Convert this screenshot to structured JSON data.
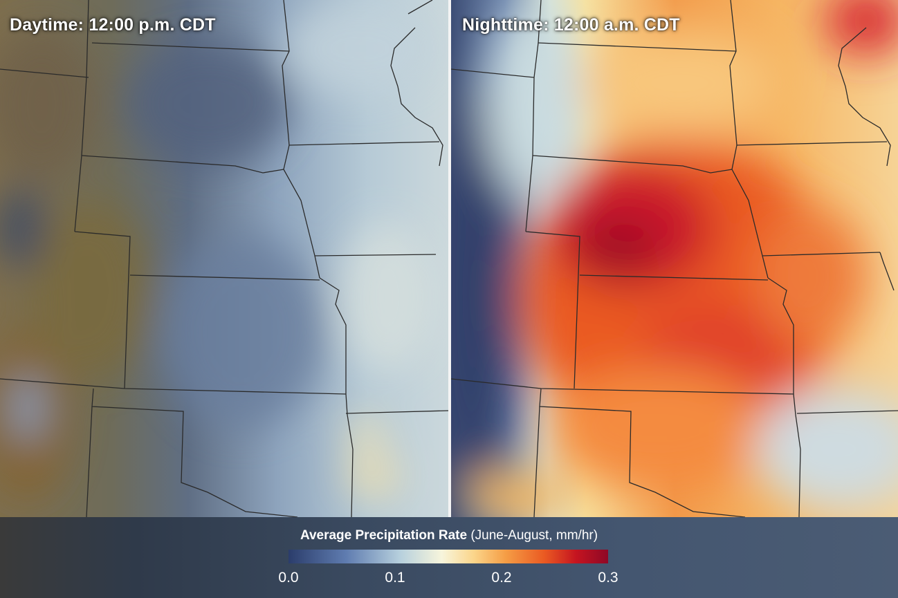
{
  "panels": {
    "day": {
      "label": "Daytime: 12:00 p.m. CDT"
    },
    "night": {
      "label": "Nighttime: 12:00 a.m. CDT"
    }
  },
  "legend": {
    "title_strong": "Average Precipitation Rate",
    "title_units": " (June-August, mm/hr)",
    "ticks": [
      "0.0",
      "0.1",
      "0.2",
      "0.3"
    ],
    "range": [
      0.0,
      0.3
    ],
    "colors": [
      "#2b3d6b",
      "#5f7cb0",
      "#b7d0dd",
      "#f7f5dc",
      "#fbd58a",
      "#f59d45",
      "#ea5a22",
      "#c51420",
      "#8e0826"
    ]
  },
  "map": {
    "border_color": "#2a2a2a",
    "boundaries": "US state borders"
  }
}
